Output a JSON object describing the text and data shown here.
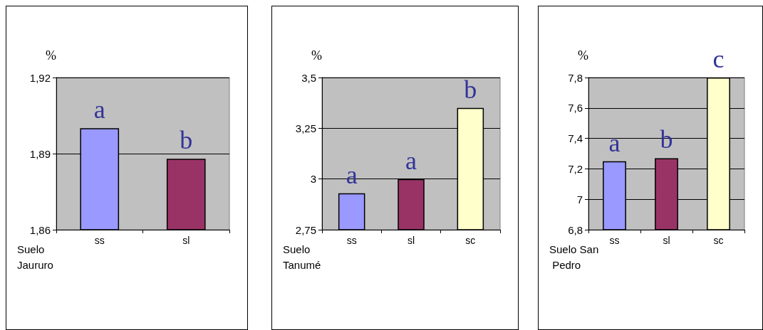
{
  "chart_data": [
    {
      "type": "bar",
      "xlabel": "Suelo Jaururo",
      "ylabel": "%",
      "categories": [
        "ss",
        "sl"
      ],
      "values": [
        1.9,
        1.888
      ],
      "value_labels": [
        "a",
        "b"
      ],
      "colors": [
        "#9999ff",
        "#993366"
      ],
      "ylim": [
        1.86,
        1.92
      ],
      "yticks": [
        {
          "value": 1.86,
          "label": "1,86"
        },
        {
          "value": 1.89,
          "label": "1,89"
        },
        {
          "value": 1.92,
          "label": "1,92"
        }
      ],
      "grid": "y"
    },
    {
      "type": "bar",
      "xlabel": "Suelo Tanumé",
      "ylabel": "%",
      "categories": [
        "ss",
        "sl",
        "sc"
      ],
      "values": [
        2.93,
        3.0,
        3.35
      ],
      "value_labels": [
        "a",
        "a",
        "b"
      ],
      "colors": [
        "#9999ff",
        "#993366",
        "#ffffcc"
      ],
      "ylim": [
        2.75,
        3.5
      ],
      "yticks": [
        {
          "value": 2.75,
          "label": "2,75"
        },
        3,
        {
          "value": 3.25,
          "label": "3,25"
        },
        {
          "value": 3.5,
          "label": "3,5"
        }
      ],
      "grid": "y"
    },
    {
      "type": "bar",
      "xlabel": "Suelo San Pedro",
      "ylabel": "%",
      "categories": [
        "ss",
        "sl",
        "sc"
      ],
      "values": [
        7.25,
        7.27,
        7.8
      ],
      "value_labels": [
        "a",
        "b",
        "c"
      ],
      "colors": [
        "#9999ff",
        "#993366",
        "#ffffcc"
      ],
      "ylim": [
        6.8,
        7.8
      ],
      "yticks": [
        {
          "value": 6.8,
          "label": "6,8"
        },
        7,
        {
          "value": 7.2,
          "label": "7,2"
        },
        {
          "value": 7.4,
          "label": "7,4"
        },
        {
          "value": 7.6,
          "label": "7,6"
        },
        {
          "value": 7.8,
          "label": "7,8"
        }
      ],
      "grid": "y"
    }
  ]
}
